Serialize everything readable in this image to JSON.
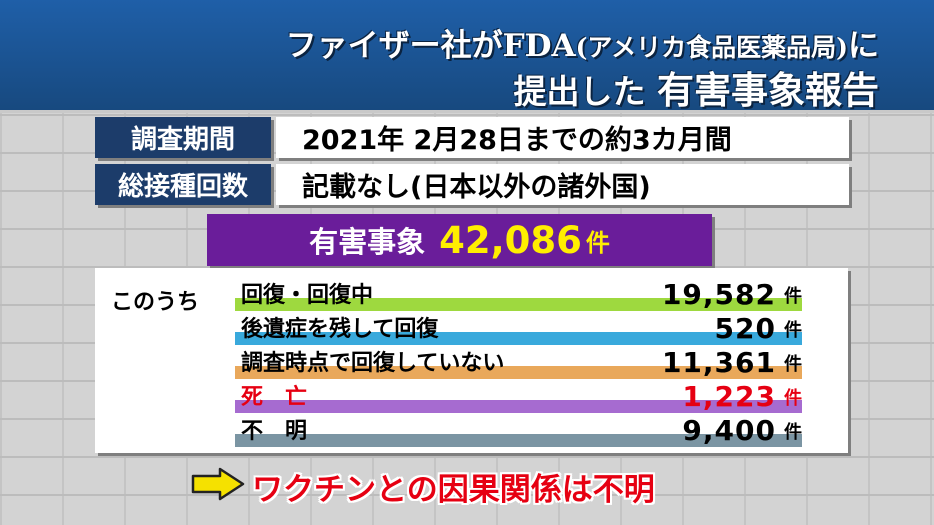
{
  "title": {
    "line1_main": "ファイザー社がFDA",
    "line1_paren": "(アメリカ食品医薬品局)",
    "line1_end": "に",
    "line2_prefix": "提出した",
    "line2_emph": "有害事象報告"
  },
  "info": [
    {
      "label": "調査期間",
      "value": "2021年 2月28日までの約3カ月間"
    },
    {
      "label": "総接種回数",
      "value": "記載なし(日本以外の諸外国)"
    }
  ],
  "headline": {
    "label": "有害事象",
    "number": "42,086",
    "unit": "件"
  },
  "breakdown": {
    "intro": "このうち",
    "rows": [
      {
        "label": "回復・回復中",
        "value": "19,582",
        "unit": "件",
        "color": "#9ed93f"
      },
      {
        "label": "後遺症を残して回復",
        "value": "520",
        "unit": "件",
        "color": "#39a9dc"
      },
      {
        "label": "調査時点で回復していない",
        "value": "11,361",
        "unit": "件",
        "color": "#e9a85b"
      },
      {
        "label": "死　亡",
        "value": "1,223",
        "unit": "件",
        "color": "#a66bd0"
      },
      {
        "label": "不　明",
        "value": "9,400",
        "unit": "件",
        "color": "#7b95a3"
      }
    ]
  },
  "conclusion": "ワクチンとの因果関係は不明",
  "colors": {
    "accent_red": "#e60012",
    "headline_bg": "#6a1d9a",
    "label_bg": "#1c3c6a",
    "banner": "#1f5fa8"
  },
  "icons": {
    "conclusion_arrow": "right-arrow-icon"
  }
}
